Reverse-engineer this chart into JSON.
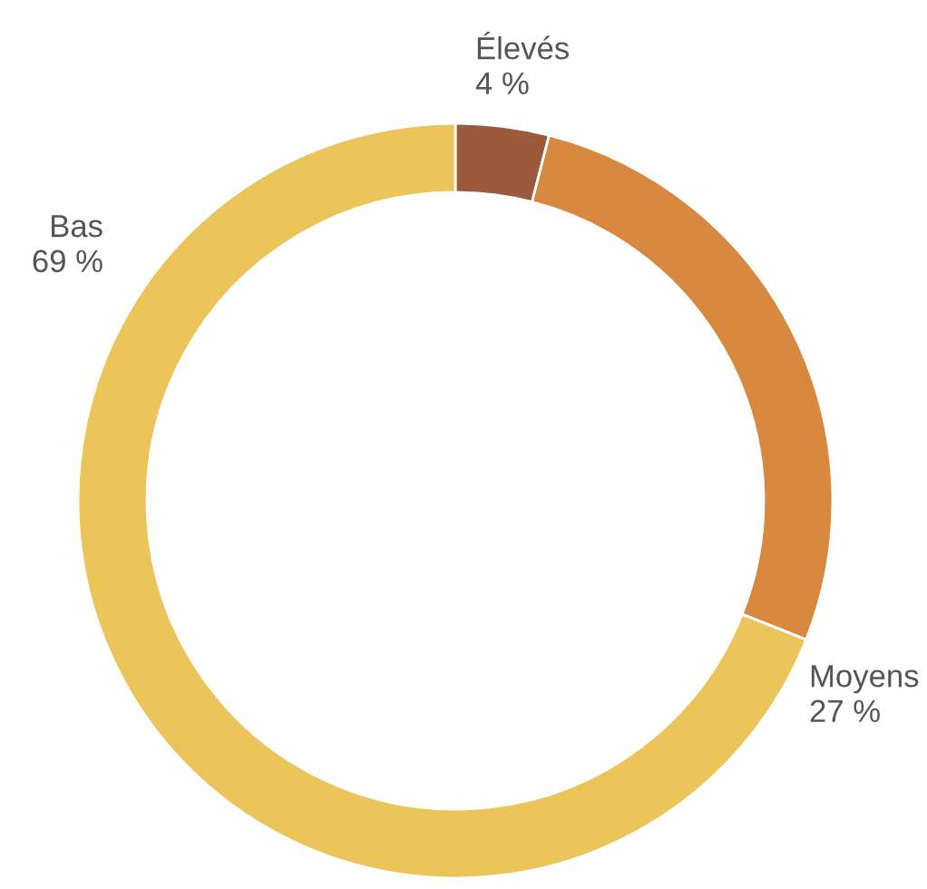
{
  "chart_data": {
    "type": "donut",
    "categories": [
      "Élevés",
      "Moyens",
      "Bas"
    ],
    "values": [
      4,
      27,
      69
    ],
    "colors": [
      "#9b5a3b",
      "#d9883f",
      "#ebc55a"
    ],
    "value_labels": [
      "4 %",
      "27 %",
      "69 %"
    ]
  }
}
